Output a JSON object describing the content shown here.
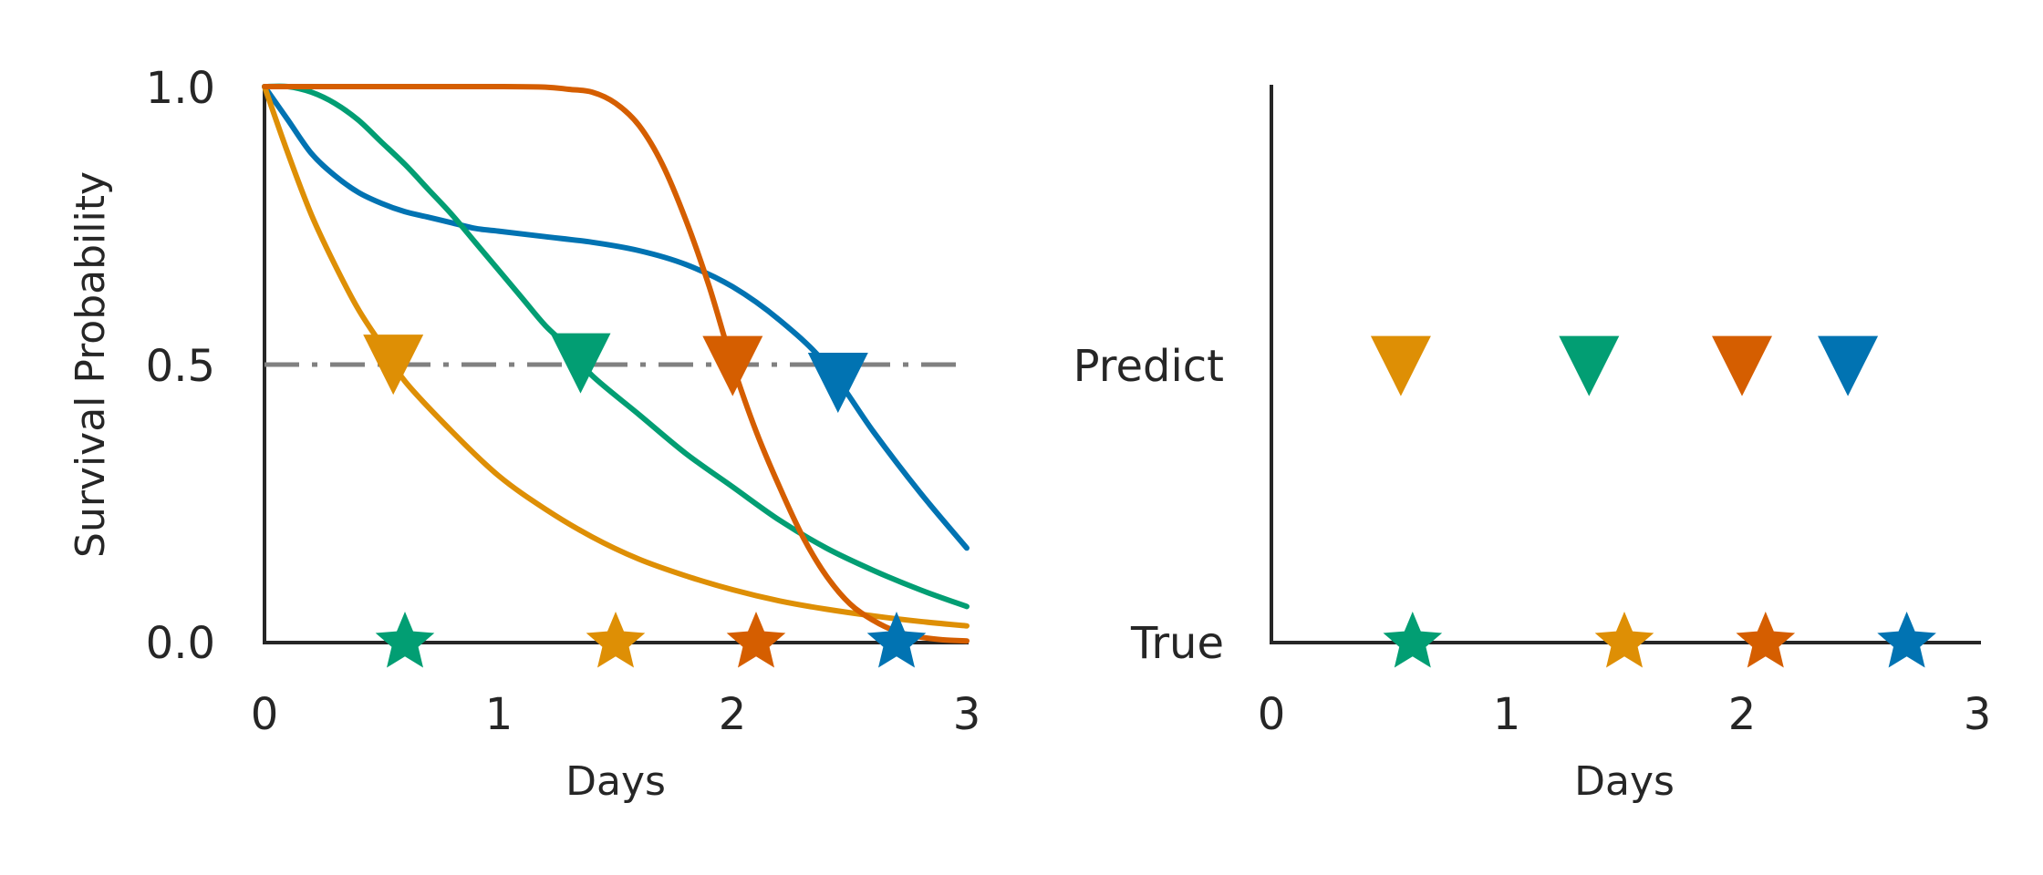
{
  "colors": {
    "blue": "#0173b2",
    "orange": "#de8f05",
    "green": "#029e73",
    "vermilion": "#d55e00",
    "refline": "#808080",
    "axis": "#262626"
  },
  "chart_data": [
    {
      "type": "line",
      "title": "",
      "xlabel": "Days",
      "ylabel": "Survival Probability",
      "xlim": [
        0,
        3
      ],
      "ylim": [
        0,
        1
      ],
      "xticks": [
        "0",
        "1",
        "2",
        "3"
      ],
      "yticks": [
        "0.0",
        "0.5",
        "1.0"
      ],
      "grid": false,
      "legend": "none",
      "reference_line": {
        "y": 0.5,
        "style": "dash-dot",
        "color": "#808080",
        "x_range": [
          0,
          3
        ]
      },
      "series": [
        {
          "color": "#0173b2",
          "x": [
            0,
            0.1,
            0.2,
            0.3,
            0.4,
            0.5,
            0.6,
            0.7,
            0.8,
            0.9,
            1.0,
            1.2,
            1.4,
            1.6,
            1.8,
            2.0,
            2.2,
            2.4,
            2.6,
            2.8,
            3.0
          ],
          "y": [
            1.0,
            0.94,
            0.88,
            0.84,
            0.81,
            0.79,
            0.775,
            0.765,
            0.755,
            0.745,
            0.74,
            0.73,
            0.72,
            0.705,
            0.68,
            0.64,
            0.58,
            0.5,
            0.38,
            0.27,
            0.17
          ],
          "median": 2.45,
          "true_event": 2.7
        },
        {
          "color": "#de8f05",
          "x": [
            0,
            0.1,
            0.2,
            0.3,
            0.4,
            0.5,
            0.6,
            0.8,
            1.0,
            1.2,
            1.4,
            1.6,
            1.8,
            2.0,
            2.2,
            2.4,
            2.6,
            2.8,
            3.0
          ],
          "y": [
            1.0,
            0.88,
            0.77,
            0.68,
            0.6,
            0.535,
            0.47,
            0.38,
            0.3,
            0.24,
            0.19,
            0.15,
            0.12,
            0.095,
            0.075,
            0.06,
            0.048,
            0.038,
            0.03
          ],
          "median": 0.55,
          "true_event": 1.5
        },
        {
          "color": "#029e73",
          "x": [
            0,
            0.1,
            0.2,
            0.3,
            0.4,
            0.5,
            0.6,
            0.7,
            0.8,
            0.9,
            1.0,
            1.1,
            1.2,
            1.3,
            1.4,
            1.6,
            1.8,
            2.0,
            2.2,
            2.4,
            2.6,
            2.8,
            3.0
          ],
          "y": [
            1.0,
            1.0,
            0.99,
            0.97,
            0.94,
            0.9,
            0.86,
            0.815,
            0.77,
            0.72,
            0.67,
            0.62,
            0.57,
            0.53,
            0.48,
            0.41,
            0.34,
            0.28,
            0.22,
            0.17,
            0.13,
            0.095,
            0.065
          ],
          "median": 1.35,
          "true_event": 0.6
        },
        {
          "color": "#d55e00",
          "x": [
            0,
            0.5,
            1.0,
            1.2,
            1.3,
            1.4,
            1.5,
            1.6,
            1.7,
            1.8,
            1.9,
            2.0,
            2.1,
            2.2,
            2.3,
            2.4,
            2.5,
            2.6,
            2.7,
            2.8,
            2.9,
            3.0
          ],
          "y": [
            1.0,
            1.0,
            1.0,
            0.999,
            0.995,
            0.99,
            0.97,
            0.93,
            0.86,
            0.76,
            0.64,
            0.5,
            0.38,
            0.28,
            0.19,
            0.12,
            0.07,
            0.04,
            0.02,
            0.01,
            0.005,
            0.003
          ],
          "median": 2.0,
          "true_event": 2.1
        }
      ]
    },
    {
      "type": "scatter",
      "title": "",
      "xlabel": "Days",
      "ylabel": "",
      "xlim": [
        0,
        3
      ],
      "xticks": [
        "0",
        "1",
        "2",
        "3"
      ],
      "categories": [
        "True",
        "Predict"
      ],
      "grid": false,
      "legend": "none",
      "series": [
        {
          "color": "#de8f05",
          "predict": 0.55,
          "true": 1.5
        },
        {
          "color": "#029e73",
          "predict": 1.35,
          "true": 0.6
        },
        {
          "color": "#d55e00",
          "predict": 2.0,
          "true": 2.1
        },
        {
          "color": "#0173b2",
          "predict": 2.45,
          "true": 2.7
        }
      ]
    }
  ]
}
